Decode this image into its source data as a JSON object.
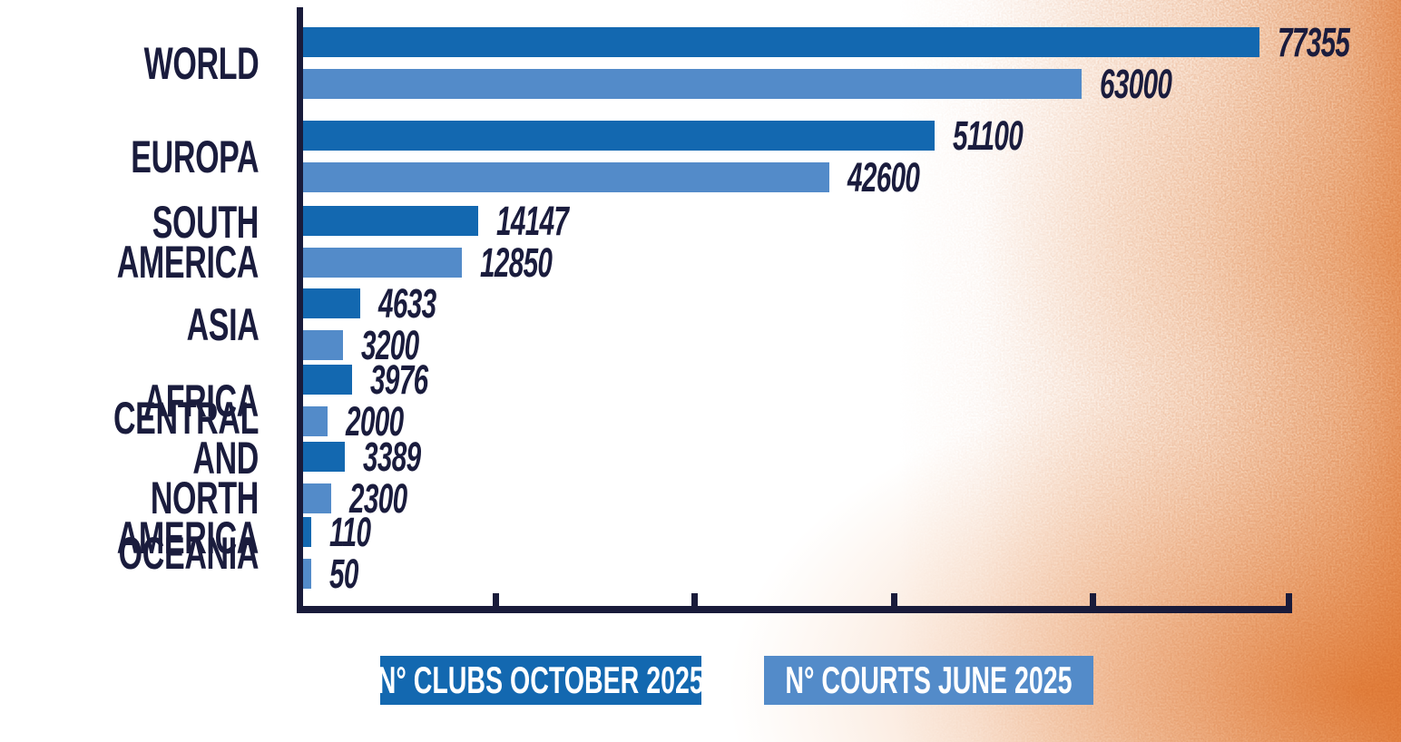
{
  "chart_data": {
    "type": "bar",
    "orientation": "horizontal",
    "title": "",
    "xlabel": "",
    "ylabel": "",
    "categories": [
      "WORLD",
      "EUROPA",
      "SOUTH AMERICA",
      "ASIA",
      "AFRICA",
      "CENTRAL AND\nNORTH AMERICA",
      "OCEANIA"
    ],
    "series": [
      {
        "name": "N° CLUBS OCTOBER 2025",
        "color": "#1368b0",
        "values": [
          77355,
          51100,
          14147,
          4633,
          3976,
          3389,
          110
        ]
      },
      {
        "name": "N° COURTS JUNE 2025",
        "color": "#538bc9",
        "values": [
          63000,
          42600,
          12850,
          3200,
          2000,
          2300,
          50
        ]
      }
    ],
    "value_labels_shown": true,
    "xlim": [
      0,
      80000
    ],
    "x_ticks": [
      16000,
      32000,
      48000,
      64000,
      80000
    ],
    "x_tick_labels": [],
    "grid": false,
    "legend_position": "bottom"
  },
  "colors": {
    "bar_dark_blue": "#1368b0",
    "bar_light_blue": "#538bc9",
    "text_navy": "#1a1c3d",
    "axis_navy": "#191b3a",
    "legend_text": "#ffffff",
    "background": "#ffffff",
    "texture_peach": "#f4c29b",
    "texture_orange": "#e07a33"
  }
}
